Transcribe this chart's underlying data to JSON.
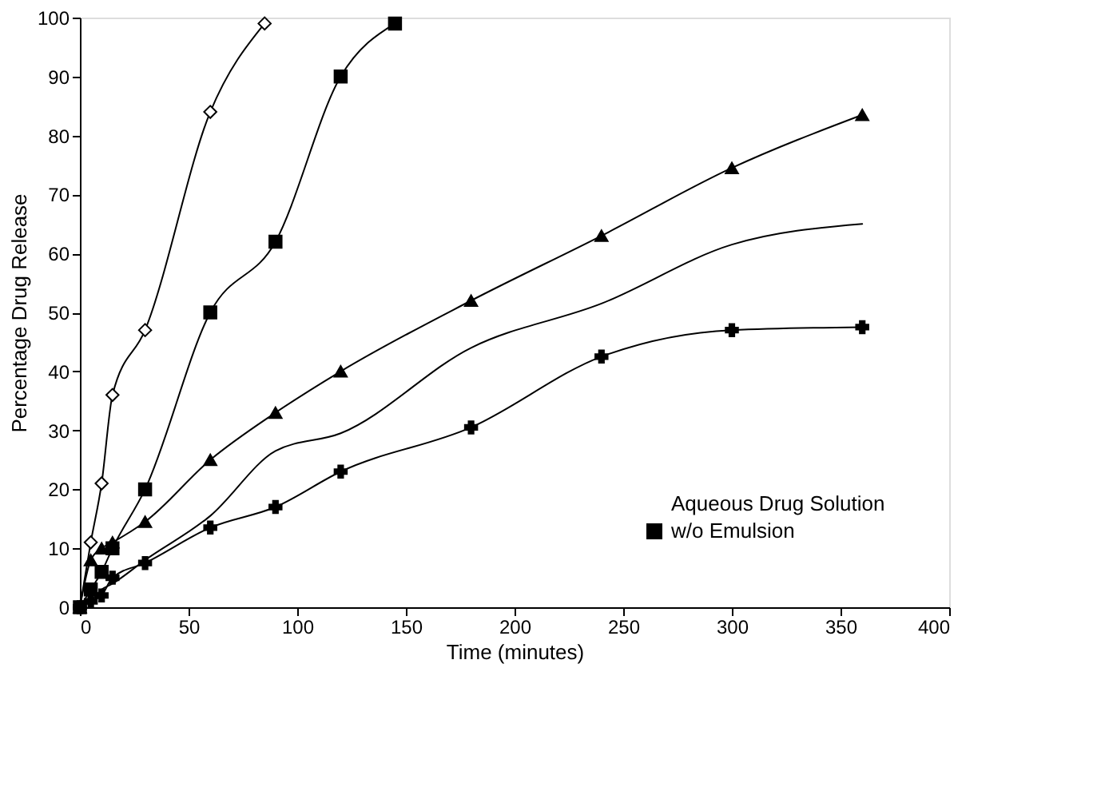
{
  "chart_data": {
    "type": "line",
    "xlabel": "Time (minutes)",
    "ylabel": "Percentage Drug Release",
    "xlim": [
      0,
      400
    ],
    "xticks": [
      0,
      50,
      100,
      150,
      200,
      250,
      300,
      350,
      400
    ],
    "ylim": [
      0,
      100
    ],
    "yticks": [
      0,
      10,
      20,
      30,
      40,
      50,
      60,
      70,
      80,
      90,
      100
    ],
    "grid": false,
    "legend": "bottom right",
    "line_style": "solid",
    "series": [
      {
        "name": "Aqueous Drug Solution",
        "color": "#000000",
        "marker": "diamond",
        "x": [
          0,
          5,
          10,
          15,
          30,
          60,
          85
        ],
        "values": [
          0,
          11,
          21,
          36,
          47,
          84,
          99
        ]
      },
      {
        "name": "w/o Emulsion",
        "color": "#000000",
        "marker": "square",
        "x": [
          0,
          5,
          10,
          15,
          30,
          60,
          90,
          120,
          145
        ],
        "values": [
          0,
          3,
          6,
          10,
          20,
          50,
          62,
          90,
          99
        ]
      },
      {
        "color": "#000000",
        "marker": "triangle",
        "x": [
          0,
          5,
          10,
          15,
          30,
          60,
          90,
          120,
          180,
          240,
          300,
          360
        ],
        "values": [
          0,
          8,
          10,
          11,
          14.5,
          25,
          33,
          40,
          52,
          63,
          74.5,
          83.5
        ]
      },
      {
        "color": "#000000",
        "marker": "none",
        "x": [
          0,
          5,
          10,
          15,
          30,
          60,
          90,
          120,
          180,
          240,
          300,
          360
        ],
        "values": [
          0,
          1,
          3,
          4,
          8,
          15.5,
          26.5,
          29.5,
          44,
          51.5,
          61.5,
          65
        ]
      },
      {
        "color": "#000000",
        "marker": "cross",
        "x": [
          0,
          5,
          10,
          15,
          30,
          60,
          90,
          120,
          180,
          240,
          300,
          360
        ],
        "values": [
          0,
          1,
          2,
          5,
          7.5,
          13.5,
          17,
          23,
          30.5,
          42.5,
          47,
          47.5
        ]
      }
    ]
  }
}
